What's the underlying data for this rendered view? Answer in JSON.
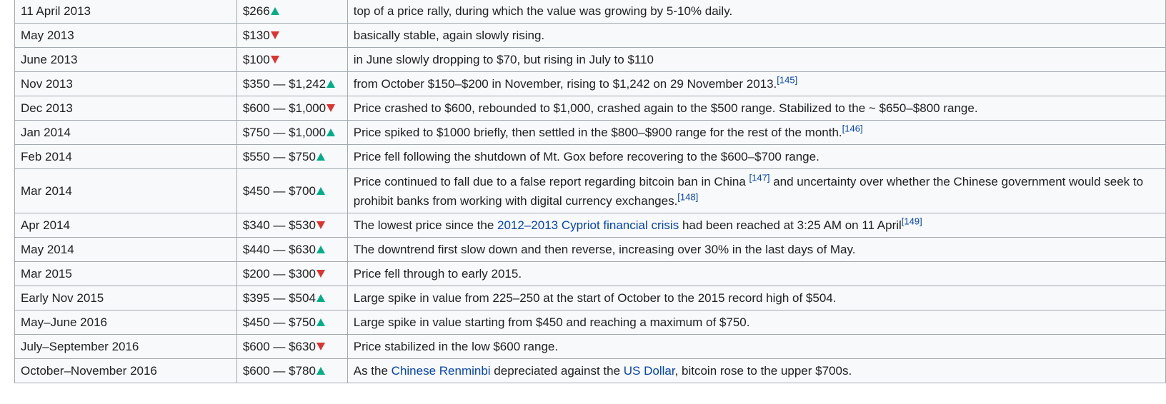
{
  "rows": [
    {
      "date": "11 April 2013",
      "price": "$266",
      "trend": "up",
      "desc": [
        {
          "t": "top of a price rally, during which the value was growing by 5-10% daily."
        }
      ]
    },
    {
      "date": "May 2013",
      "price": "$130",
      "trend": "down",
      "desc": [
        {
          "t": "basically stable, again slowly rising."
        }
      ]
    },
    {
      "date": "June 2013",
      "price": "$100",
      "trend": "down",
      "desc": [
        {
          "t": "in June slowly dropping to $70, but rising in July to $110"
        }
      ]
    },
    {
      "date": "Nov 2013",
      "price": "$350 — $1,242",
      "trend": "up",
      "desc": [
        {
          "t": "from October $150–$200 in November, rising to $1,242 on 29 November 2013."
        },
        {
          "ref": "[145]"
        }
      ]
    },
    {
      "date": "Dec 2013",
      "price": "$600 — $1,000",
      "trend": "down",
      "desc": [
        {
          "t": "Price crashed to $600, rebounded to $1,000, crashed again to the $500 range. Stabilized to the ~ $650–$800 range."
        }
      ]
    },
    {
      "date": "Jan 2014",
      "price": "$750 — $1,000",
      "trend": "up",
      "desc": [
        {
          "t": "Price spiked to $1000 briefly, then settled in the $800–$900 range for the rest of the month."
        },
        {
          "ref": "[146]"
        }
      ]
    },
    {
      "date": "Feb 2014",
      "price": "$550 — $750",
      "trend": "up",
      "desc": [
        {
          "t": "Price fell following the shutdown of Mt. Gox before recovering to the $600–$700 range."
        }
      ]
    },
    {
      "date": "Mar 2014",
      "price": "$450 — $700",
      "trend": "up",
      "tall": true,
      "desc": [
        {
          "t": "Price continued to fall due to a false report regarding bitcoin ban in China "
        },
        {
          "ref": "[147]"
        },
        {
          "t": " and uncertainty over whether the Chinese government would seek to prohibit banks from working with digital currency exchanges."
        },
        {
          "ref": "[148]"
        }
      ]
    },
    {
      "date": "Apr 2014",
      "price": "$340 — $530",
      "trend": "down",
      "desc": [
        {
          "t": "The lowest price since the "
        },
        {
          "link": "2012–2013 Cypriot financial crisis"
        },
        {
          "t": " had been reached at 3:25 AM on 11 April"
        },
        {
          "ref": "[149]"
        }
      ]
    },
    {
      "date": "May 2014",
      "price": "$440 — $630",
      "trend": "up",
      "desc": [
        {
          "t": "The downtrend first slow down and then reverse, increasing over 30% in the last days of May."
        }
      ]
    },
    {
      "date": "Mar 2015",
      "price": "$200 — $300",
      "trend": "down",
      "desc": [
        {
          "t": "Price fell through to early 2015."
        }
      ]
    },
    {
      "date": "Early Nov 2015",
      "price": "$395 — $504",
      "trend": "up",
      "desc": [
        {
          "t": "Large spike in value from 225–250 at the start of October to the 2015 record high of $504."
        }
      ]
    },
    {
      "date": "May–June 2016",
      "price": "$450 — $750",
      "trend": "up",
      "desc": [
        {
          "t": "Large spike in value starting from $450 and reaching a maximum of $750."
        }
      ]
    },
    {
      "date": "July–September 2016",
      "price": "$600 — $630",
      "trend": "down",
      "desc": [
        {
          "t": "Price stabilized in the low $600 range."
        }
      ]
    },
    {
      "date": "October–November 2016",
      "price": "$600 — $780",
      "trend": "up",
      "desc": [
        {
          "t": "As the "
        },
        {
          "link": "Chinese Renminbi"
        },
        {
          "t": " depreciated against the "
        },
        {
          "link": "US Dollar"
        },
        {
          "t": ", bitcoin rose to the upper $700s."
        }
      ]
    }
  ],
  "colors": {
    "up": "#00af89",
    "down": "#dd3333",
    "link": "#0645ad",
    "border": "#a2a9b1",
    "cell_bg": "#f8f9fa"
  },
  "icons": {
    "up": "triangle-up-icon",
    "down": "triangle-down-icon"
  }
}
